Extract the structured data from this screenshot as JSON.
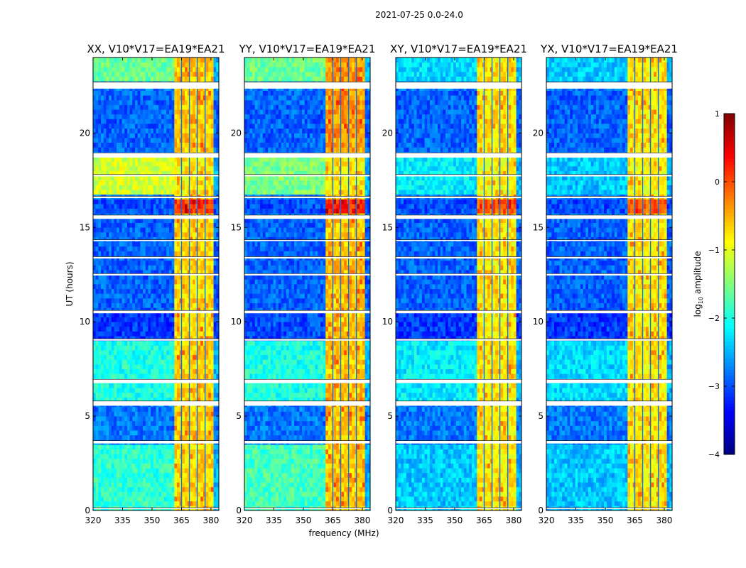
{
  "chart_data": {
    "type": "heatmap",
    "suptitle": "2021-07-25 0.0-24.0",
    "xlabel": "frequency (MHz)",
    "ylabel": "UT (hours)",
    "xlim": [
      320,
      384
    ],
    "ylim": [
      0,
      24
    ],
    "xticks": [
      "320",
      "335",
      "350",
      "365",
      "380"
    ],
    "xtick_values": [
      320,
      335,
      350,
      365,
      380
    ],
    "yticks": [
      "0",
      "5",
      "10",
      "15",
      "20"
    ],
    "ytick_values": [
      0,
      5,
      10,
      15,
      20
    ],
    "colorbar": {
      "label": "log",
      "label_sub": "10",
      "label_rest": " amplitude",
      "colormap": "jet",
      "range": [
        -4,
        1
      ],
      "ticks": [
        "1",
        "0",
        "−1",
        "−2",
        "−3",
        "−4"
      ],
      "tick_values": [
        1,
        0,
        -1,
        -2,
        -3,
        -4
      ]
    },
    "rfi_band_MHz": [
      361,
      381
    ],
    "rfi_subchannel_edges_MHz": [
      365,
      369,
      373,
      377
    ],
    "flagged_hours": [
      [
        22.35,
        22.7
      ],
      [
        18.7,
        18.95
      ],
      [
        17.7,
        17.8
      ],
      [
        16.55,
        16.65
      ],
      [
        15.45,
        15.65
      ],
      [
        14.3,
        14.35
      ],
      [
        13.35,
        13.45
      ],
      [
        12.45,
        12.55
      ],
      [
        10.45,
        10.6
      ],
      [
        9.0,
        9.1
      ],
      [
        6.75,
        6.95
      ],
      [
        5.55,
        5.8
      ],
      [
        3.55,
        3.7
      ],
      [
        0.1,
        0.15
      ]
    ],
    "panels": [
      {
        "title": "XX, V10*V17=EA19*EA21",
        "background": [
          [
            0,
            3.6,
            -1.9
          ],
          [
            3.7,
            5.55,
            -2.8
          ],
          [
            5.8,
            9.0,
            -2.0
          ],
          [
            9.1,
            10.45,
            -3.1
          ],
          [
            10.6,
            15.45,
            -2.9
          ],
          [
            15.65,
            16.55,
            -3.0
          ],
          [
            16.65,
            18.7,
            -1.1
          ],
          [
            18.95,
            22.35,
            -2.9
          ],
          [
            22.7,
            24,
            -1.6
          ]
        ],
        "rfi": [
          [
            0,
            15.45,
            -0.7
          ],
          [
            15.65,
            16.55,
            0.1
          ],
          [
            16.65,
            18.7,
            -0.8
          ],
          [
            18.95,
            24,
            -0.6
          ]
        ]
      },
      {
        "title": "YY, V10*V17=EA19*EA21",
        "background": [
          [
            0,
            3.6,
            -1.8
          ],
          [
            3.7,
            5.55,
            -2.8
          ],
          [
            5.8,
            9.0,
            -2.0
          ],
          [
            9.1,
            10.45,
            -3.0
          ],
          [
            10.6,
            15.45,
            -2.9
          ],
          [
            15.65,
            16.55,
            -3.0
          ],
          [
            16.65,
            18.7,
            -1.5
          ],
          [
            18.95,
            22.35,
            -2.9
          ],
          [
            22.7,
            24,
            -1.6
          ]
        ],
        "rfi": [
          [
            0,
            15.45,
            -0.6
          ],
          [
            15.65,
            16.55,
            0.2
          ],
          [
            16.65,
            18.7,
            -0.8
          ],
          [
            18.95,
            24,
            -0.4
          ]
        ]
      },
      {
        "title": "XY, V10*V17=EA19*EA21",
        "background": [
          [
            0,
            3.6,
            -2.4
          ],
          [
            3.7,
            5.55,
            -2.8
          ],
          [
            5.8,
            9.0,
            -2.2
          ],
          [
            9.1,
            10.45,
            -3.1
          ],
          [
            10.6,
            15.45,
            -2.9
          ],
          [
            15.65,
            16.55,
            -3.0
          ],
          [
            16.65,
            18.7,
            -2.2
          ],
          [
            18.95,
            22.35,
            -2.9
          ],
          [
            22.7,
            24,
            -2.3
          ]
        ],
        "rfi": [
          [
            0,
            15.45,
            -0.8
          ],
          [
            15.65,
            16.55,
            -0.1
          ],
          [
            16.65,
            18.7,
            -0.9
          ],
          [
            18.95,
            24,
            -0.8
          ]
        ]
      },
      {
        "title": "YX, V10*V17=EA19*EA21",
        "background": [
          [
            0,
            3.6,
            -2.4
          ],
          [
            3.7,
            5.55,
            -2.8
          ],
          [
            5.8,
            9.0,
            -2.3
          ],
          [
            9.1,
            10.45,
            -3.1
          ],
          [
            10.6,
            15.45,
            -2.9
          ],
          [
            15.65,
            16.55,
            -3.0
          ],
          [
            16.65,
            18.7,
            -2.4
          ],
          [
            18.95,
            22.35,
            -2.9
          ],
          [
            22.7,
            24,
            -2.4
          ]
        ],
        "rfi": [
          [
            0,
            15.45,
            -0.8
          ],
          [
            15.65,
            16.55,
            -0.1
          ],
          [
            16.65,
            18.7,
            -0.9
          ],
          [
            18.95,
            24,
            -0.8
          ]
        ]
      }
    ]
  }
}
